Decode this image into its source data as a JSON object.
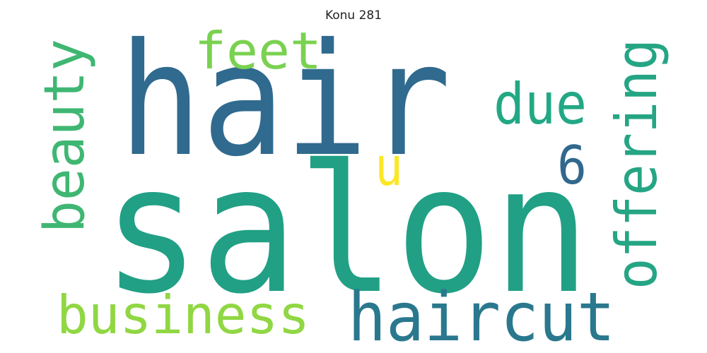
{
  "title": "Konu 281",
  "words": [
    {
      "text": "salon",
      "color": "#21a085"
    },
    {
      "text": "hair",
      "color": "#306a8e"
    },
    {
      "text": "haircut",
      "color": "#2a788e"
    },
    {
      "text": "offering",
      "color": "#25a584"
    },
    {
      "text": "beauty",
      "color": "#3fb772"
    },
    {
      "text": "business",
      "color": "#90d743"
    },
    {
      "text": "feet",
      "color": "#7ad151"
    },
    {
      "text": "due",
      "color": "#22a884"
    },
    {
      "text": "6",
      "color": "#31688e"
    },
    {
      "text": "u",
      "color": "#fde725"
    }
  ]
}
